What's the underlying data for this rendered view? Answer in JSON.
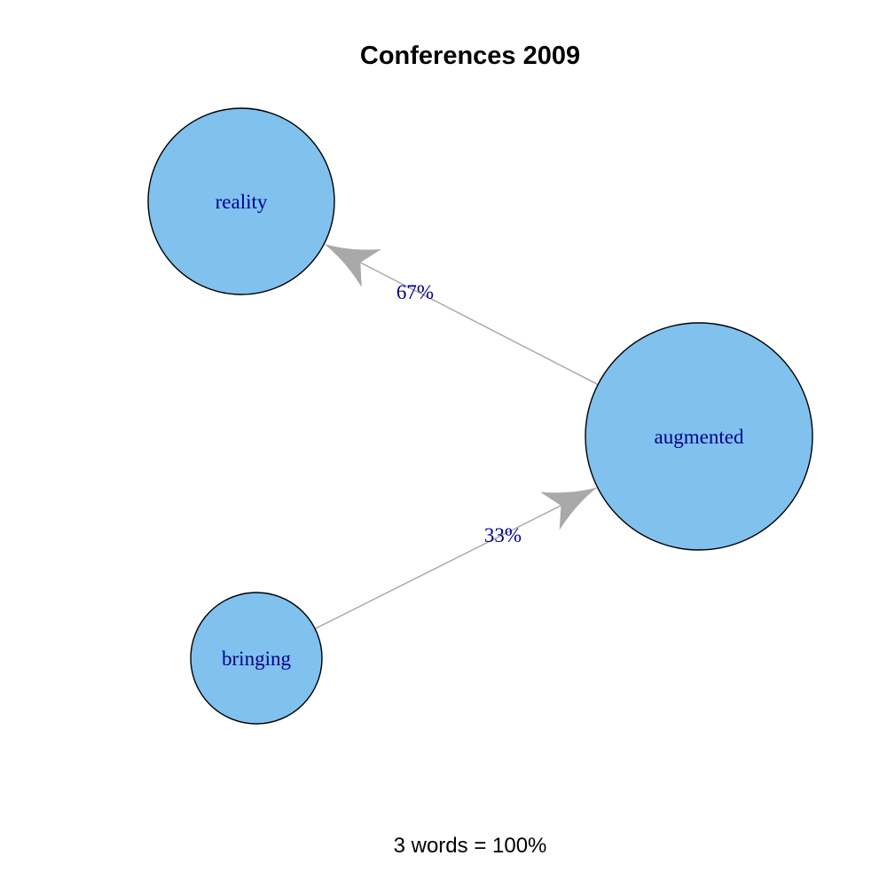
{
  "title": "Conferences 2009",
  "caption": "3 words = 100%",
  "colors": {
    "node_fill": "#80c1ee",
    "node_stroke": "#000000",
    "label_text": "#00008b",
    "edge": "#a9a9a9"
  },
  "nodes": [
    {
      "id": "reality",
      "label": "reality"
    },
    {
      "id": "augmented",
      "label": "augmented"
    },
    {
      "id": "bringing",
      "label": "bringing"
    }
  ],
  "edges": [
    {
      "from": "augmented",
      "to": "reality",
      "label": "67%"
    },
    {
      "from": "bringing",
      "to": "augmented",
      "label": "33%"
    }
  ]
}
